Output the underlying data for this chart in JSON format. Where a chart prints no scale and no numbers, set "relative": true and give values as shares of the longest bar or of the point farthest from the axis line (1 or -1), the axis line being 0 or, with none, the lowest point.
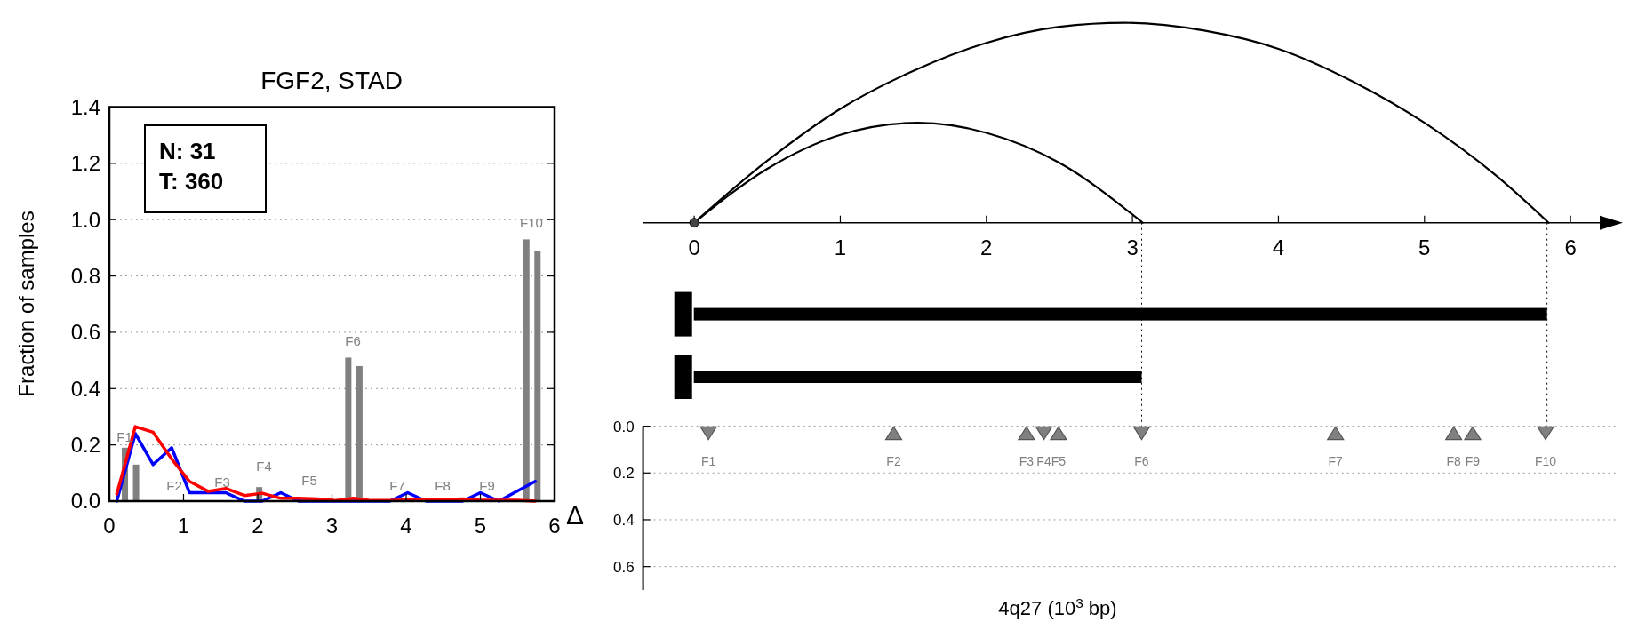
{
  "chart_data": [
    {
      "type": "bar",
      "title": "FGF2, STAD",
      "ylabel": "Fraction of samples",
      "xlim": [
        0,
        6
      ],
      "xticks": [
        0,
        1,
        2,
        3,
        4,
        5,
        6
      ],
      "ylim": [
        0,
        1.4
      ],
      "yticks": [
        {
          "value": 0,
          "label": "0.0"
        },
        {
          "value": 0.2,
          "label": "0.2"
        },
        {
          "value": 0.4,
          "label": "0.4"
        },
        {
          "value": 0.6,
          "label": "0.6"
        },
        {
          "value": 0.8,
          "label": "0.8"
        },
        {
          "value": 1.0,
          "label": "1.0"
        },
        {
          "value": 1.2,
          "label": "1.2"
        },
        {
          "value": 1.4,
          "label": "1.4"
        }
      ],
      "grid": "y",
      "series": [
        {
          "color": "#808080",
          "x": [
            0.21,
            0.36,
            2.02,
            3.22,
            3.37,
            5.62,
            5.77
          ],
          "values": [
            0.19,
            0.13,
            0.05,
            0.51,
            0.48,
            0.93,
            0.89
          ]
        },
        {
          "type": "line",
          "color": "#0000ff",
          "x": [
            0.1,
            0.35,
            0.59,
            0.84,
            1.08,
            1.33,
            1.57,
            1.82,
            2.06,
            2.31,
            2.55,
            2.8,
            3.04,
            3.29,
            3.53,
            3.78,
            4.02,
            4.27,
            4.51,
            4.76,
            5.0,
            5.25,
            5.49,
            5.74
          ],
          "values": [
            0,
            0.24,
            0.13,
            0.19,
            0.03,
            0.03,
            0.03,
            0,
            0,
            0.03,
            0,
            0,
            0,
            0,
            0,
            0,
            0.03,
            0,
            0,
            0,
            0.03,
            0,
            0.035,
            0.07
          ]
        },
        {
          "type": "line",
          "color": "#ff0000",
          "x": [
            0.1,
            0.35,
            0.59,
            0.84,
            1.08,
            1.33,
            1.57,
            1.82,
            2.06,
            2.31,
            2.55,
            2.8,
            3.04,
            3.29,
            3.53,
            3.78,
            4.02,
            4.27,
            4.51,
            4.76,
            5.0,
            5.25,
            5.49,
            5.74
          ],
          "values": [
            0.025,
            0.265,
            0.245,
            0.15,
            0.07,
            0.035,
            0.045,
            0.02,
            0.028,
            0.01,
            0.01,
            0.008,
            0.002,
            0.01,
            0.002,
            0.002,
            0.005,
            0.005,
            0.005,
            0.008,
            0.003,
            0.003,
            0.003,
            0
          ]
        }
      ],
      "annotations": [
        "N: 31",
        "T: 360",
        "F1",
        "F2",
        "F3",
        "F4",
        "F5",
        "F6",
        "F7",
        "F8",
        "F9",
        "F10"
      ]
    },
    {
      "type": "line",
      "relative": true,
      "xlim": [
        -0.35,
        6.2
      ],
      "xticks": [
        0,
        1,
        2,
        3,
        4,
        5,
        6
      ],
      "tick_labels": "x",
      "series": [
        {
          "color": "#000000",
          "x": [
            0,
            0.5,
            1,
            1.5,
            2,
            2.5,
            2.95,
            3.5,
            4,
            4.5,
            5,
            5.5,
            5.85
          ],
          "values": [
            0,
            0.31,
            0.57,
            0.76,
            0.9,
            0.98,
            1,
            0.96,
            0.87,
            0.71,
            0.5,
            0.23,
            0
          ]
        },
        {
          "color": "#000000",
          "x": [
            0,
            0.5,
            1,
            1.53,
            2,
            2.5,
            3.07
          ],
          "values": [
            0,
            0.27,
            0.44,
            0.5,
            0.45,
            0.3,
            0
          ]
        }
      ]
    },
    {
      "type": "bar",
      "orientation": "horizontal",
      "categories": [
        null,
        null
      ],
      "values": [
        5.85,
        3.07
      ],
      "color": "#000000",
      "xlim": [
        0,
        6
      ],
      "tick_labels": false,
      "ref_lines": [
        {
          "axis": "x",
          "value": 3.07,
          "line_style": "dotted"
        },
        {
          "axis": "x",
          "value": 5.85,
          "line_style": "dotted"
        }
      ]
    },
    {
      "type": "scatter",
      "xlabel": "4q27 (10$^{3}$ bp)",
      "ylabel": "Δ",
      "xlim": [
        0,
        6
      ],
      "ylim": [
        0.7,
        0
      ],
      "yticks": [
        {
          "value": 0,
          "label": "0.0"
        },
        {
          "value": 0.2,
          "label": "0.2"
        },
        {
          "value": 0.4,
          "label": "0.4"
        },
        {
          "value": 0.6,
          "label": "0.6"
        }
      ],
      "tick_labels": "y",
      "grid": "y",
      "marker": "triangle",
      "series": [
        {
          "color": "#808080",
          "x": [
            0.1,
            2.4,
            3.07,
            5.84
          ],
          "values": [
            0.03,
            0.03,
            0.03,
            0.03
          ]
        },
        {
          "color": "#808080",
          "x": [
            1.37,
            2.28,
            2.5,
            4.4,
            5.21,
            5.34
          ],
          "values": [
            0.03,
            0.03,
            0.03,
            0.03,
            0.03,
            0.03
          ]
        }
      ],
      "annotations": [
        {
          "text": "F1",
          "x": 0.1,
          "y": 0.03
        },
        {
          "text": "F2",
          "x": 1.37,
          "y": 0.03
        },
        {
          "text": "F3",
          "x": 2.28,
          "y": 0.03
        },
        {
          "text": "F4",
          "x": 2.4,
          "y": 0.03
        },
        {
          "text": "F5",
          "x": 2.5,
          "y": 0.03
        },
        {
          "text": "F6",
          "x": 3.07,
          "y": 0.03
        },
        {
          "text": "F7",
          "x": 4.4,
          "y": 0.03
        },
        {
          "text": "F8",
          "x": 5.21,
          "y": 0.03
        },
        {
          "text": "F9",
          "x": 5.34,
          "y": 0.03
        },
        {
          "text": "F10",
          "x": 5.84,
          "y": 0.03
        }
      ]
    }
  ]
}
